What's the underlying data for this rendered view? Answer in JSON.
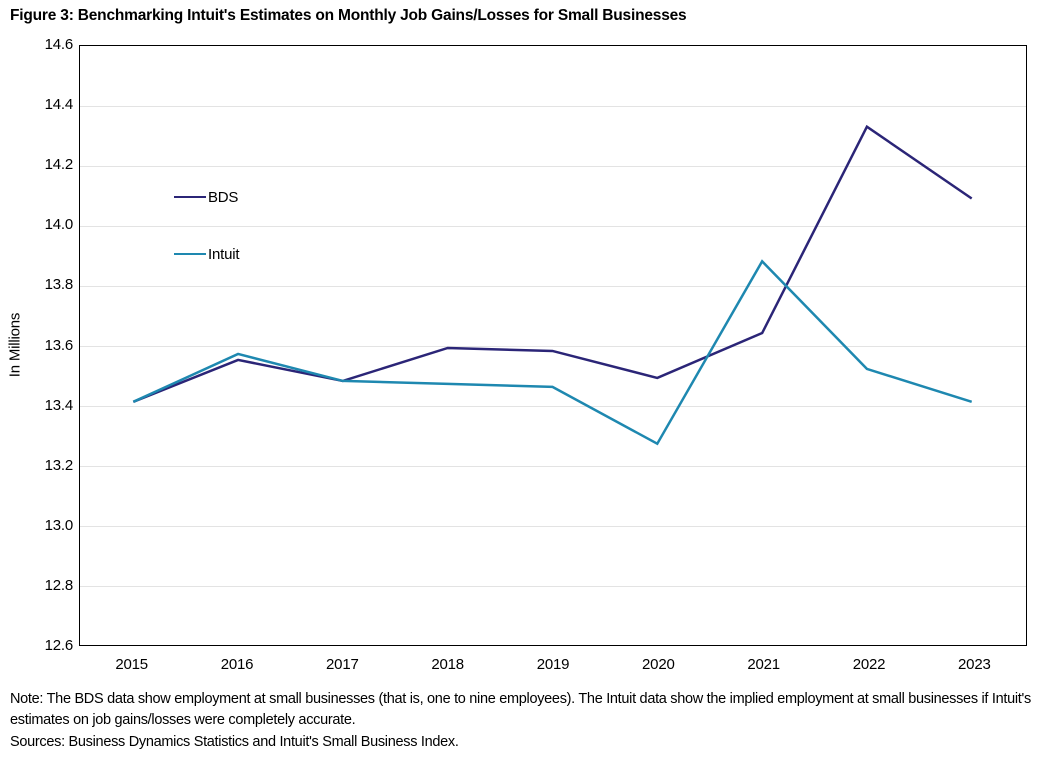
{
  "title": "Figure 3: Benchmarking Intuit's Estimates on Monthly Job Gains/Losses for Small Businesses",
  "chart_data": {
    "type": "line",
    "categories": [
      "2015",
      "2016",
      "2017",
      "2018",
      "2019",
      "2020",
      "2021",
      "2022",
      "2023"
    ],
    "series": [
      {
        "name": "BDS",
        "color": "#2b2577",
        "width": 2.5,
        "values": [
          13.41,
          13.55,
          13.48,
          13.59,
          13.58,
          13.49,
          13.64,
          14.33,
          14.09
        ]
      },
      {
        "name": "Intuit",
        "color": "#1e88b0",
        "width": 2.5,
        "values": [
          13.41,
          13.57,
          13.48,
          13.47,
          13.46,
          13.27,
          13.88,
          13.52,
          13.41
        ]
      }
    ],
    "title": "Figure 3: Benchmarking Intuit's Estimates on Monthly Job Gains/Losses for Small Businesses",
    "xlabel": "",
    "ylabel": "In Millions",
    "ylim": [
      12.6,
      14.6
    ],
    "yticks": [
      "12.6",
      "12.8",
      "13.0",
      "13.2",
      "13.4",
      "13.6",
      "13.8",
      "14.0",
      "14.2",
      "14.4",
      "14.6"
    ],
    "grid": "horizontal",
    "gridline_color": "#e3e3e3",
    "legend_position": "inside-upper-left",
    "plot_border_color": "#000000"
  },
  "notes": {
    "note": "Note: The BDS data show employment at small businesses (that is, one to nine employees). The Intuit data show the implied employment at small businesses if Intuit's estimates on job gains/losses were completely accurate.",
    "sources": "Sources: Business Dynamics Statistics and Intuit's Small Business Index."
  }
}
